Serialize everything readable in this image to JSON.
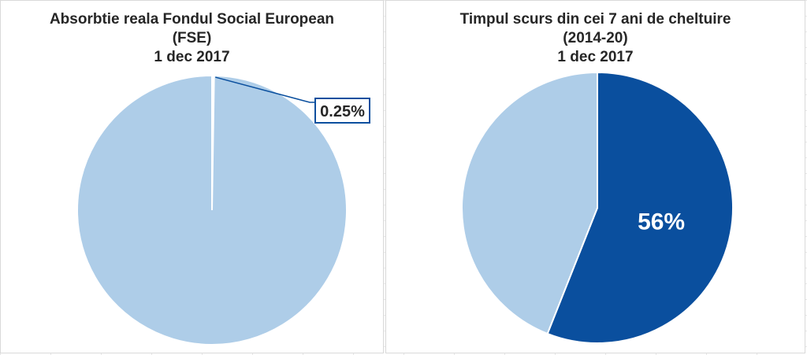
{
  "colors": {
    "light_blue": "#aecde8",
    "dark_blue": "#0a4f9e",
    "white": "#ffffff"
  },
  "chart_data": [
    {
      "type": "pie",
      "title_lines": [
        "Absorbtie reala Fondul Social European",
        "(FSE)",
        "1 dec 2017"
      ],
      "slices": [
        {
          "label": "0.25%",
          "value": 0.25
        },
        {
          "value": 99.75
        }
      ],
      "slice_colors": [
        "#ffffff",
        "#aecde8"
      ],
      "data_label": "0.25%"
    },
    {
      "type": "pie",
      "title_lines": [
        "Timpul scurs din cei 7 ani de cheltuire",
        "(2014-20)",
        "1 dec 2017"
      ],
      "slices": [
        {
          "label": "56%",
          "value": 56
        },
        {
          "value": 44
        }
      ],
      "slice_colors": [
        "#0a4f9e",
        "#aecde8"
      ],
      "data_label": "56%"
    }
  ]
}
